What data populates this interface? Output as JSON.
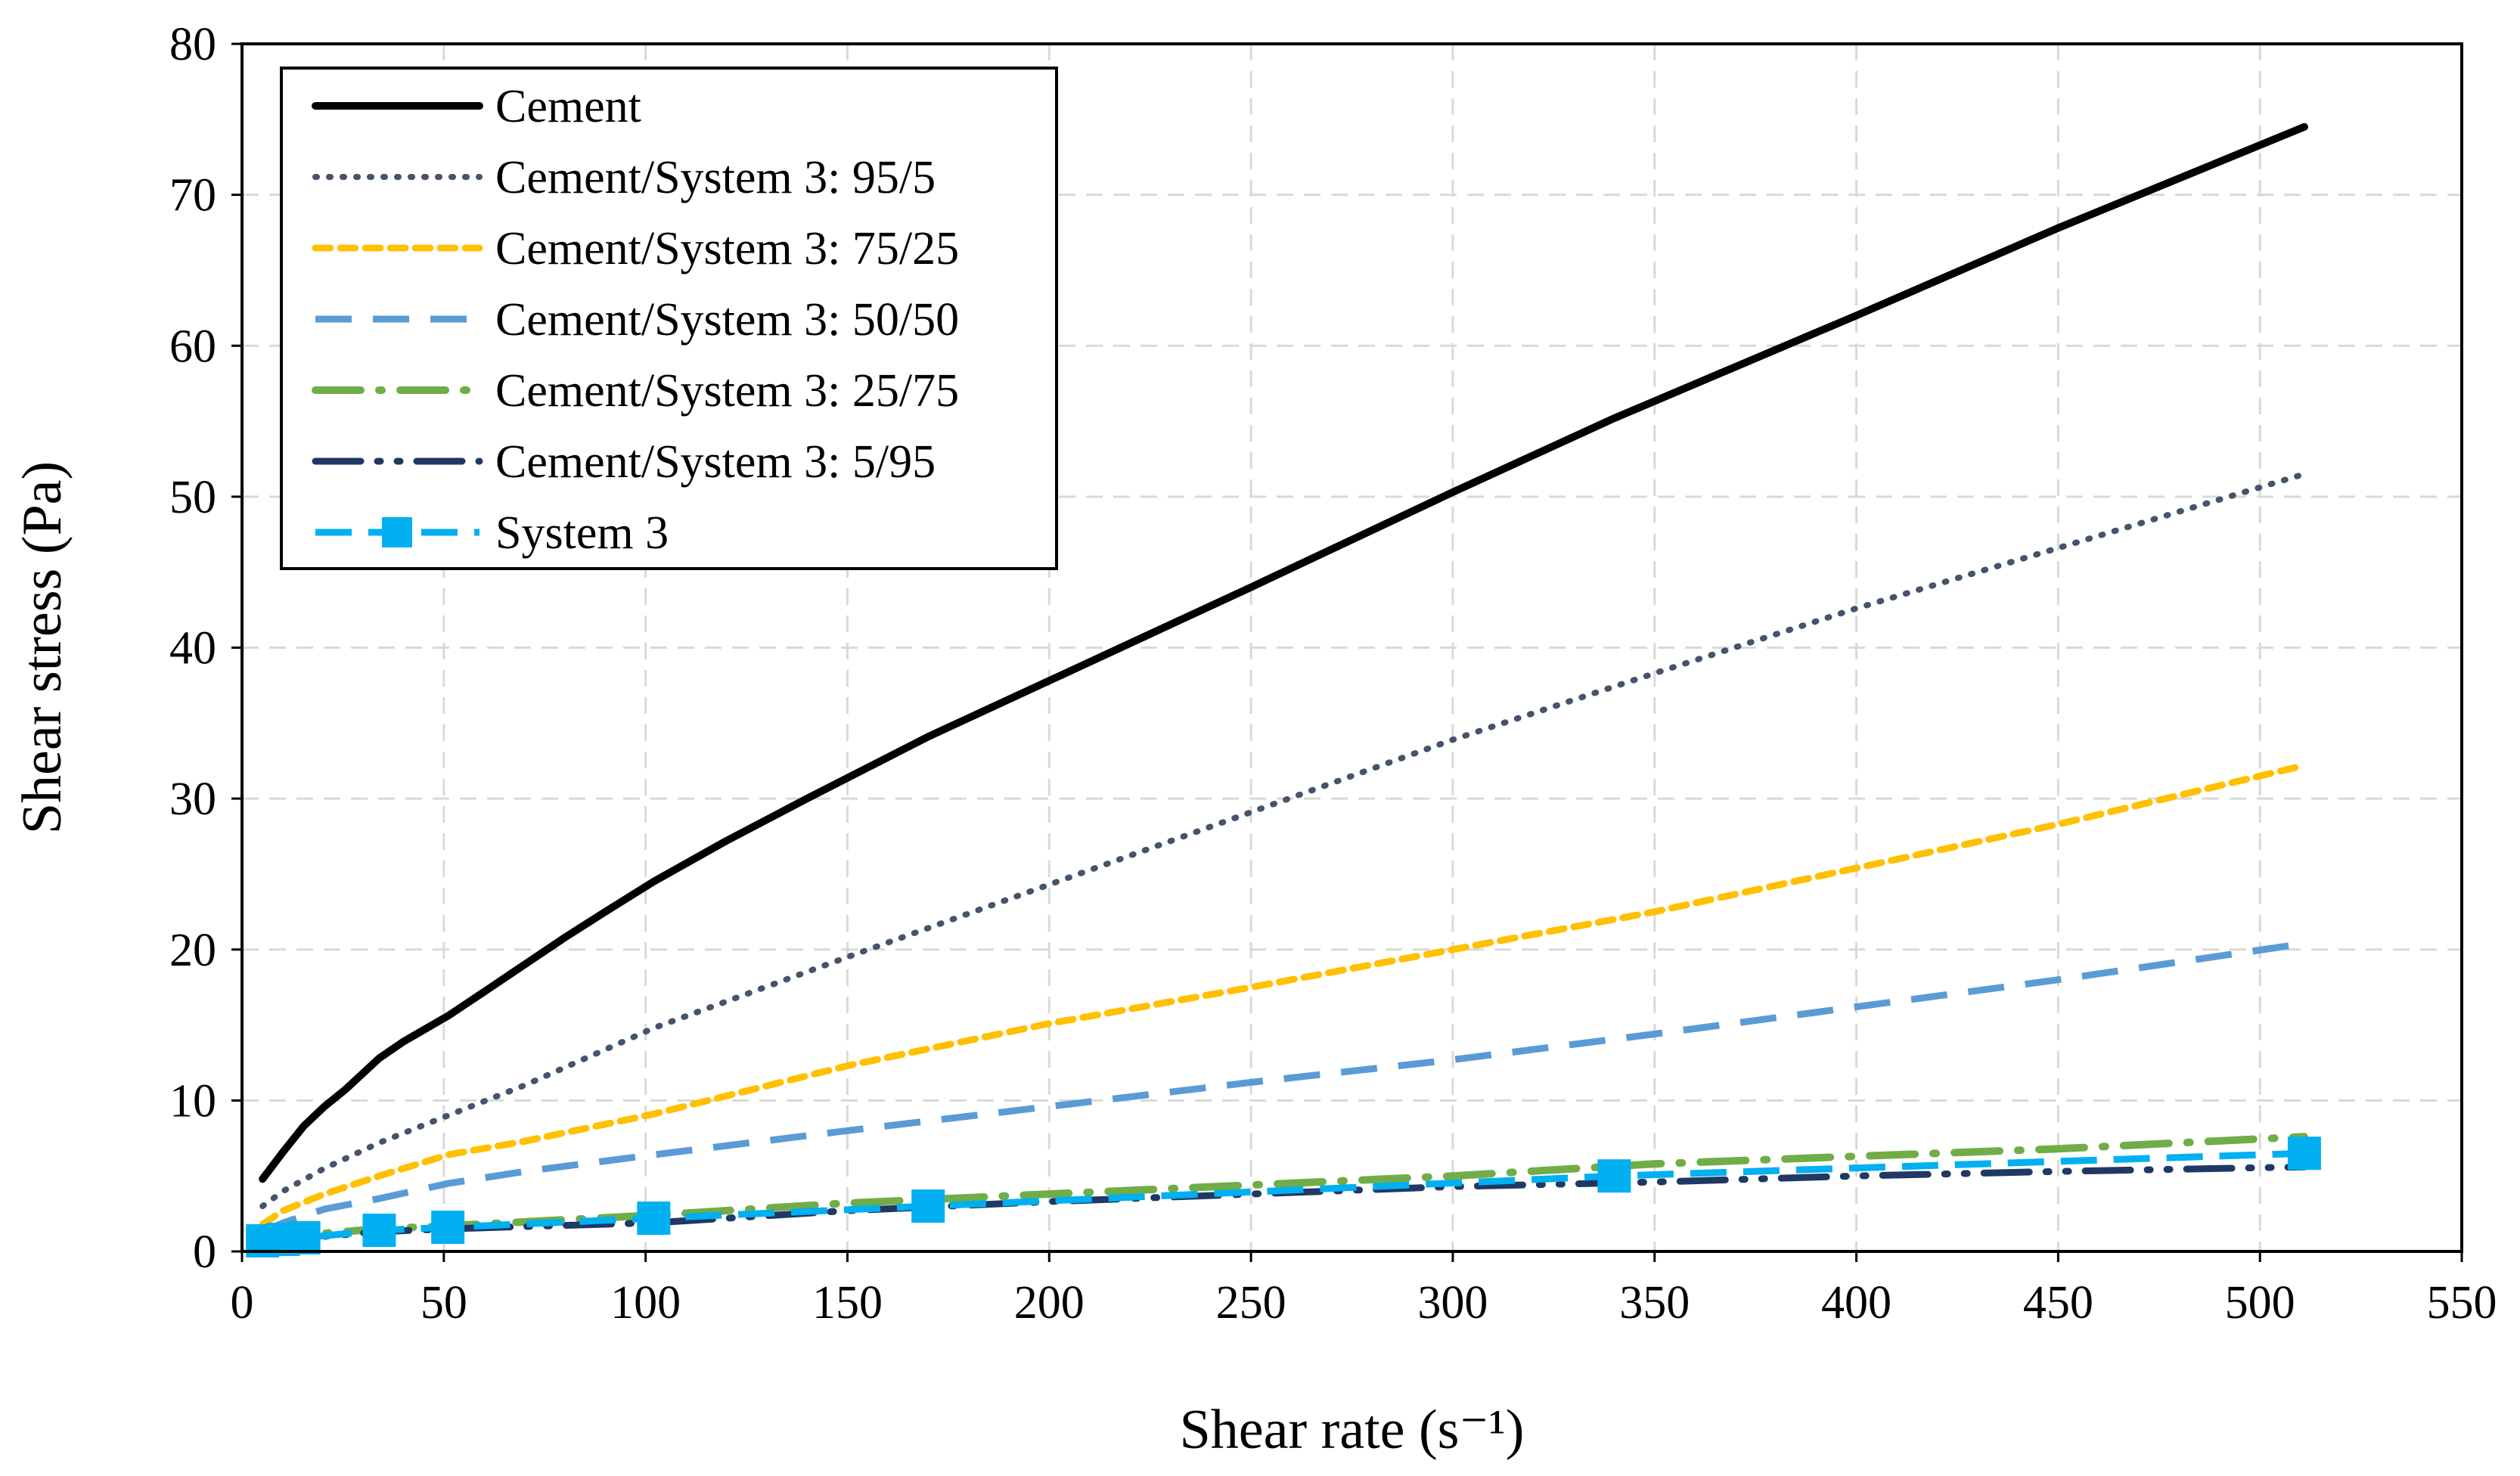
{
  "chart_data": {
    "type": "line",
    "title": "",
    "xlabel": "Shear rate (s⁻¹)",
    "ylabel": "Shear stress (Pa)",
    "xlim": [
      0,
      550
    ],
    "ylim": [
      0,
      80
    ],
    "xticks": [
      0,
      50,
      100,
      150,
      200,
      250,
      300,
      350,
      400,
      450,
      500,
      550
    ],
    "yticks": [
      0,
      10,
      20,
      30,
      40,
      50,
      60,
      70,
      80
    ],
    "grid": true,
    "legend_position": "top-left",
    "series": [
      {
        "name": "Cement",
        "color": "#000000",
        "style": "solid",
        "x": [
          5.1,
          10.2,
          15.3,
          20.4,
          25.5,
          34,
          40,
          51,
          60,
          70,
          80,
          90,
          102,
          120,
          140,
          170,
          204,
          250,
          300,
          340,
          400,
          450,
          511
        ],
        "y": [
          4.8,
          6.6,
          8.3,
          9.6,
          10.7,
          12.8,
          13.9,
          15.6,
          17.2,
          19.0,
          20.8,
          22.5,
          24.5,
          27.2,
          30.0,
          34.1,
          38.3,
          44.0,
          50.3,
          55.2,
          62.0,
          67.8,
          74.5
        ]
      },
      {
        "name": "Cement/System 3: 95/5",
        "color": "#44546a",
        "style": "dotted",
        "x": [
          5.1,
          10.2,
          20.4,
          34,
          51,
          70,
          102,
          150,
          200,
          250,
          300,
          350,
          400,
          450,
          511
        ],
        "y": [
          3.0,
          4.0,
          5.5,
          7.2,
          9.0,
          11.0,
          14.8,
          19.5,
          24.3,
          29.1,
          33.9,
          38.3,
          42.6,
          46.6,
          51.5
        ]
      },
      {
        "name": "Cement/System 3: 75/25",
        "color": "#ffc000",
        "style": "short-dash",
        "x": [
          5.1,
          10.2,
          20.4,
          34,
          51,
          70,
          102,
          150,
          200,
          250,
          300,
          350,
          400,
          450,
          511
        ],
        "y": [
          1.8,
          2.7,
          3.8,
          5.0,
          6.4,
          7.3,
          9.1,
          12.3,
          15.1,
          17.5,
          20.0,
          22.5,
          25.4,
          28.3,
          32.2
        ]
      },
      {
        "name": "Cement/System 3: 50/50",
        "color": "#5b9bd5",
        "style": "dash",
        "x": [
          5.1,
          10.2,
          20.4,
          34,
          51,
          70,
          102,
          150,
          200,
          250,
          300,
          350,
          400,
          450,
          511
        ],
        "y": [
          1.3,
          1.9,
          2.8,
          3.5,
          4.5,
          5.3,
          6.4,
          8.0,
          9.6,
          11.2,
          12.7,
          14.4,
          16.2,
          18.0,
          20.4
        ]
      },
      {
        "name": "Cement/System 3: 25/75",
        "color": "#70ad47",
        "style": "long-dash-dot",
        "x": [
          5.1,
          10.2,
          20.4,
          34,
          51,
          102,
          150,
          200,
          250,
          300,
          350,
          400,
          450,
          511
        ],
        "y": [
          0.8,
          1.0,
          1.2,
          1.5,
          1.7,
          2.4,
          3.2,
          3.8,
          4.4,
          5.0,
          5.8,
          6.3,
          6.8,
          7.6
        ]
      },
      {
        "name": "Cement/System 3: 5/95",
        "color": "#203864",
        "style": "long-dash-dot-dot",
        "x": [
          5.1,
          10.2,
          20.4,
          34,
          51,
          102,
          150,
          200,
          250,
          300,
          350,
          400,
          450,
          511
        ],
        "y": [
          0.7,
          0.8,
          1.0,
          1.3,
          1.5,
          1.9,
          2.7,
          3.3,
          3.8,
          4.3,
          4.6,
          5.0,
          5.3,
          5.6
        ]
      },
      {
        "name": "System 3",
        "color": "#00b0f0",
        "style": "dash-square",
        "x": [
          5.1,
          10.2,
          15.3,
          34,
          51,
          102,
          170,
          340,
          511
        ],
        "y": [
          0.7,
          0.8,
          0.9,
          1.4,
          1.6,
          2.2,
          3.0,
          5.0,
          6.5
        ]
      }
    ]
  }
}
